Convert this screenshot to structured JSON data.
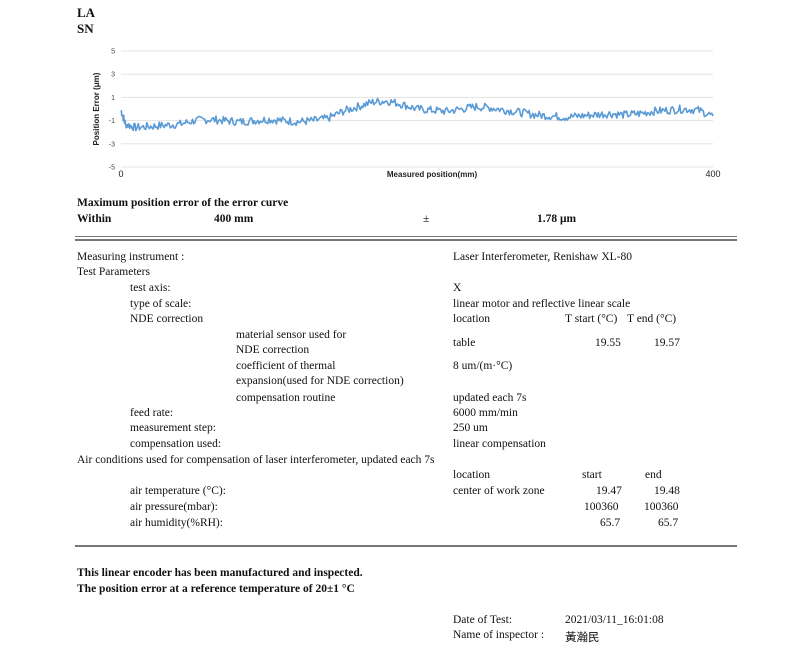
{
  "header": {
    "line1": "LA",
    "line2": "SN"
  },
  "chart_data": {
    "type": "line",
    "title": "",
    "xlabel": "Measured position(mm)",
    "ylabel": "Position Error (μm)",
    "xlim": [
      0,
      400
    ],
    "ylim": [
      -5,
      5
    ],
    "xticks": [
      "0",
      "400"
    ],
    "yticks": [
      "5",
      "3",
      "1",
      "-1",
      "-3",
      "-5"
    ],
    "grid": true,
    "color": "#5b9bd5",
    "series": [
      {
        "values": [
          [
            0,
            -0.1
          ],
          [
            3,
            -1.3
          ],
          [
            10,
            -1.6
          ],
          [
            20,
            -1.5
          ],
          [
            30,
            -1.4
          ],
          [
            40,
            -1.3
          ],
          [
            50,
            -1.0
          ],
          [
            60,
            -0.9
          ],
          [
            70,
            -1.0
          ],
          [
            80,
            -1.1
          ],
          [
            90,
            -1.0
          ],
          [
            100,
            -0.9
          ],
          [
            110,
            -1.0
          ],
          [
            120,
            -1.1
          ],
          [
            130,
            -1.0
          ],
          [
            140,
            -0.8
          ],
          [
            150,
            -0.2
          ],
          [
            160,
            0.2
          ],
          [
            170,
            0.6
          ],
          [
            180,
            0.7
          ],
          [
            190,
            0.4
          ],
          [
            200,
            0.0
          ],
          [
            210,
            -0.1
          ],
          [
            220,
            -0.2
          ],
          [
            230,
            0.0
          ],
          [
            240,
            0.2
          ],
          [
            250,
            0.1
          ],
          [
            260,
            -0.1
          ],
          [
            270,
            -0.3
          ],
          [
            280,
            -0.5
          ],
          [
            290,
            -0.6
          ],
          [
            300,
            -0.7
          ],
          [
            310,
            -0.6
          ],
          [
            320,
            -0.5
          ],
          [
            330,
            -0.4
          ],
          [
            340,
            -0.5
          ],
          [
            350,
            -0.4
          ],
          [
            360,
            -0.2
          ],
          [
            370,
            -0.1
          ],
          [
            380,
            0.0
          ],
          [
            390,
            -0.1
          ],
          [
            400,
            -0.6
          ]
        ]
      }
    ]
  },
  "summary": {
    "title": "Maximum position error of the error curve",
    "within_label": "Within",
    "range": "400 mm",
    "pm": "±",
    "error": "1.78 μm"
  },
  "params": {
    "instrument_label": "Measuring instrument :",
    "instrument_value": "Laser Interferometer, Renishaw XL-80",
    "test_params_label": "Test Parameters",
    "test_axis_label": "test axis:",
    "test_axis_value": "X",
    "scale_label": "type of scale:",
    "scale_value": "linear motor and reflective linear scale",
    "nde_label": "NDE correction",
    "nde_location_head": "location",
    "nde_start_head": "T start (°C)",
    "nde_end_head": "T end (°C)",
    "material_label_1": "material sensor used for",
    "material_label_2": "NDE correction",
    "material_location": "table",
    "material_start": "19.55",
    "material_end": "19.57",
    "coef_label_1": "coefficient of thermal",
    "coef_label_2": "expansion(used for NDE correction)",
    "coef_value": "8 um/(m·°C)",
    "comp_routine_label": "compensation routine",
    "comp_routine_value": "updated each 7s",
    "feed_label": "feed rate:",
    "feed_value": "6000 mm/min",
    "step_label": "measurement step:",
    "step_value": "250 um",
    "comp_used_label": "compensation used:",
    "comp_used_value": "linear compensation"
  },
  "air": {
    "title": "Air conditions used for compensation of laser interferometer, updated each 7s",
    "location_head": "location",
    "start_head": "start",
    "end_head": "end",
    "temp_label": "air temperature (°C):",
    "temp_location": "center of work zone",
    "temp_start": "19.47",
    "temp_end": "19.48",
    "pressure_label": "air pressure(mbar):",
    "pressure_start": "100360",
    "pressure_end": "100360",
    "humidity_label": "air humidity(%RH):",
    "humidity_start": "65.7",
    "humidity_end": "65.7"
  },
  "statement": {
    "line1": "This linear encoder has been manufactured and inspected.",
    "line2": "The position error at a reference temperature of 20±1 °C"
  },
  "footer": {
    "date_label": "Date of Test:",
    "date_value": "2021/03/11_16:01:08",
    "inspector_label": "Name of inspector :",
    "inspector_value": "黃瀚民"
  }
}
